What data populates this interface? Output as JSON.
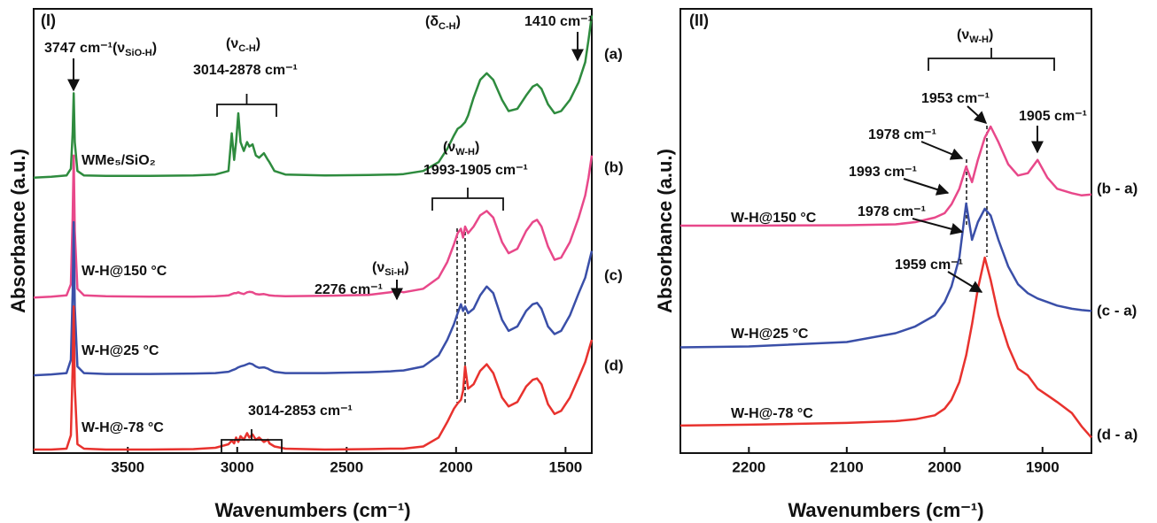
{
  "chart_data": [
    {
      "type": "line",
      "title": "(I)",
      "xlabel": "Wavenumbers (cm⁻¹)",
      "ylabel": "Absorbance (a.u.)",
      "x": [
        3930,
        3850,
        3780,
        3760,
        3752,
        3747,
        3742,
        3730,
        3700,
        3600,
        3400,
        3200,
        3100,
        3040,
        3025,
        3014,
        3005,
        2995,
        2985,
        2970,
        2955,
        2945,
        2930,
        2915,
        2900,
        2878,
        2860,
        2853,
        2830,
        2780,
        2600,
        2400,
        2300,
        2276,
        2240,
        2150,
        2080,
        2040,
        2010,
        1993,
        1978,
        1968,
        1959,
        1945,
        1920,
        1890,
        1860,
        1830,
        1790,
        1760,
        1720,
        1680,
        1650,
        1630,
        1610,
        1580,
        1550,
        1520,
        1480,
        1440,
        1410,
        1395,
        1380
      ],
      "xlim": [
        3930,
        1380
      ],
      "xticks": [
        3500,
        3000,
        2500,
        2000,
        1500
      ],
      "ylim": [
        0,
        10
      ],
      "series": [
        {
          "name": "WMe₅/SiO₂",
          "tag": "(a)",
          "color": "#2e8b3e",
          "values": [
            6.2,
            6.22,
            6.25,
            6.4,
            7.2,
            8.1,
            7.0,
            6.35,
            6.25,
            6.24,
            6.24,
            6.25,
            6.27,
            6.35,
            7.2,
            6.6,
            7.0,
            7.65,
            7.0,
            6.8,
            7.0,
            6.9,
            6.95,
            6.7,
            6.65,
            6.75,
            6.6,
            6.55,
            6.35,
            6.27,
            6.25,
            6.26,
            6.27,
            6.27,
            6.28,
            6.35,
            6.55,
            6.85,
            7.15,
            7.3,
            7.35,
            7.4,
            7.45,
            7.6,
            8.0,
            8.4,
            8.55,
            8.4,
            7.95,
            7.7,
            7.75,
            8.05,
            8.25,
            8.3,
            8.2,
            7.85,
            7.65,
            7.7,
            7.95,
            8.35,
            8.8,
            9.3,
            9.85
          ]
        },
        {
          "name": "W-H@150 °C",
          "tag": "(b)",
          "color": "#e8488a",
          "values": [
            3.5,
            3.52,
            3.55,
            3.8,
            5.3,
            6.7,
            5.0,
            3.7,
            3.55,
            3.53,
            3.52,
            3.52,
            3.53,
            3.55,
            3.58,
            3.6,
            3.6,
            3.62,
            3.6,
            3.58,
            3.62,
            3.63,
            3.62,
            3.58,
            3.57,
            3.58,
            3.56,
            3.55,
            3.54,
            3.53,
            3.54,
            3.56,
            3.62,
            3.66,
            3.62,
            3.7,
            3.95,
            4.3,
            4.7,
            4.95,
            5.05,
            4.85,
            5.1,
            4.95,
            5.1,
            5.35,
            5.45,
            5.3,
            4.75,
            4.5,
            4.6,
            5.0,
            5.2,
            5.25,
            5.1,
            4.65,
            4.35,
            4.4,
            4.75,
            5.3,
            5.8,
            6.2,
            6.7
          ]
        },
        {
          "name": "W-H@25 °C",
          "tag": "(c)",
          "color": "#3a4fa8",
          "values": [
            1.75,
            1.77,
            1.8,
            2.1,
            3.6,
            5.2,
            3.3,
            1.95,
            1.8,
            1.78,
            1.78,
            1.79,
            1.8,
            1.83,
            1.86,
            1.88,
            1.9,
            1.93,
            1.95,
            1.97,
            2.0,
            2.02,
            2.0,
            1.95,
            1.92,
            1.93,
            1.9,
            1.88,
            1.83,
            1.8,
            1.8,
            1.82,
            1.84,
            1.85,
            1.86,
            1.95,
            2.2,
            2.55,
            2.9,
            3.15,
            3.35,
            3.2,
            3.3,
            3.15,
            3.25,
            3.55,
            3.75,
            3.6,
            3.0,
            2.75,
            2.85,
            3.2,
            3.35,
            3.38,
            3.25,
            2.85,
            2.68,
            2.75,
            3.1,
            3.6,
            3.95,
            4.25,
            4.55
          ]
        },
        {
          "name": "W-H@-78 °C",
          "tag": "(d)",
          "color": "#e8322e",
          "values": [
            0.08,
            0.08,
            0.1,
            0.4,
            1.9,
            3.3,
            1.5,
            0.2,
            0.1,
            0.08,
            0.08,
            0.09,
            0.12,
            0.2,
            0.28,
            0.22,
            0.35,
            0.25,
            0.38,
            0.3,
            0.45,
            0.35,
            0.42,
            0.3,
            0.35,
            0.25,
            0.3,
            0.22,
            0.15,
            0.1,
            0.08,
            0.09,
            0.1,
            0.1,
            0.1,
            0.15,
            0.35,
            0.7,
            1.0,
            1.12,
            1.2,
            1.4,
            1.95,
            1.45,
            1.55,
            1.85,
            2.0,
            1.8,
            1.25,
            1.05,
            1.15,
            1.5,
            1.65,
            1.68,
            1.55,
            1.1,
            0.88,
            0.95,
            1.25,
            1.7,
            2.05,
            2.3,
            2.55
          ]
        }
      ],
      "annotations": [
        {
          "label": [
            "3747 cm⁻¹(ν",
            "SiO-H",
            ")"
          ]
        },
        {
          "label": [
            "(ν",
            "C-H",
            ")"
          ]
        },
        {
          "label": [
            "3014-2878 cm⁻¹"
          ]
        },
        {
          "label": [
            "(δ",
            "C-H",
            ")"
          ]
        },
        {
          "label": [
            "1410 cm⁻¹"
          ]
        },
        {
          "label": [
            "(ν",
            "W-H",
            ")"
          ]
        },
        {
          "label": [
            "1993-1905 cm⁻¹"
          ]
        },
        {
          "label": [
            "(ν",
            "Si-H",
            ")"
          ]
        },
        {
          "label": [
            "2276 cm⁻¹"
          ]
        },
        {
          "label": [
            "3014-2853 cm⁻¹"
          ]
        }
      ]
    },
    {
      "type": "line",
      "title": "(II)",
      "xlabel": "Wavenumbers (cm⁻¹)",
      "ylabel": "Absorbance (a.u.)",
      "x": [
        2270,
        2200,
        2100,
        2050,
        2030,
        2010,
        2000,
        1993,
        1985,
        1978,
        1972,
        1966,
        1959,
        1953,
        1945,
        1935,
        1925,
        1915,
        1905,
        1895,
        1885,
        1870,
        1860,
        1850
      ],
      "xlim": [
        2270,
        1850
      ],
      "xticks": [
        2200,
        2100,
        2000,
        1900
      ],
      "ylim": [
        0,
        10
      ],
      "series": [
        {
          "name": "W-H@150 °C",
          "tag": "(b - a)",
          "color": "#e8488a",
          "values": [
            5.12,
            5.12,
            5.13,
            5.15,
            5.2,
            5.3,
            5.4,
            5.6,
            5.95,
            6.45,
            6.1,
            6.6,
            7.1,
            7.35,
            7.0,
            6.5,
            6.25,
            6.3,
            6.6,
            6.2,
            5.95,
            5.85,
            5.8,
            5.82
          ]
        },
        {
          "name": "W-H@25 °C",
          "tag": "(c - a)",
          "color": "#3a4fa8",
          "values": [
            2.38,
            2.4,
            2.5,
            2.7,
            2.85,
            3.1,
            3.4,
            3.75,
            4.4,
            5.62,
            4.8,
            5.2,
            5.5,
            5.35,
            4.8,
            4.2,
            3.8,
            3.6,
            3.48,
            3.4,
            3.32,
            3.25,
            3.22,
            3.2
          ]
        },
        {
          "name": "W-H@-78 °C",
          "tag": "(d - a)",
          "color": "#e8322e",
          "values": [
            0.62,
            0.64,
            0.68,
            0.72,
            0.76,
            0.85,
            1.0,
            1.2,
            1.6,
            2.2,
            2.9,
            3.7,
            4.4,
            3.9,
            3.1,
            2.4,
            1.9,
            1.75,
            1.45,
            1.3,
            1.15,
            0.9,
            0.6,
            0.35
          ]
        }
      ],
      "annotations": [
        {
          "label": [
            "(ν",
            "W-H",
            ")"
          ]
        },
        {
          "label": [
            "1953 cm⁻¹"
          ]
        },
        {
          "label": [
            "1905 cm⁻¹"
          ]
        },
        {
          "label": [
            "1978 cm⁻¹"
          ]
        },
        {
          "label": [
            "1993 cm⁻¹"
          ]
        },
        {
          "label": [
            "1978 cm⁻¹"
          ]
        },
        {
          "label": [
            "1959 cm⁻¹"
          ]
        }
      ]
    }
  ]
}
